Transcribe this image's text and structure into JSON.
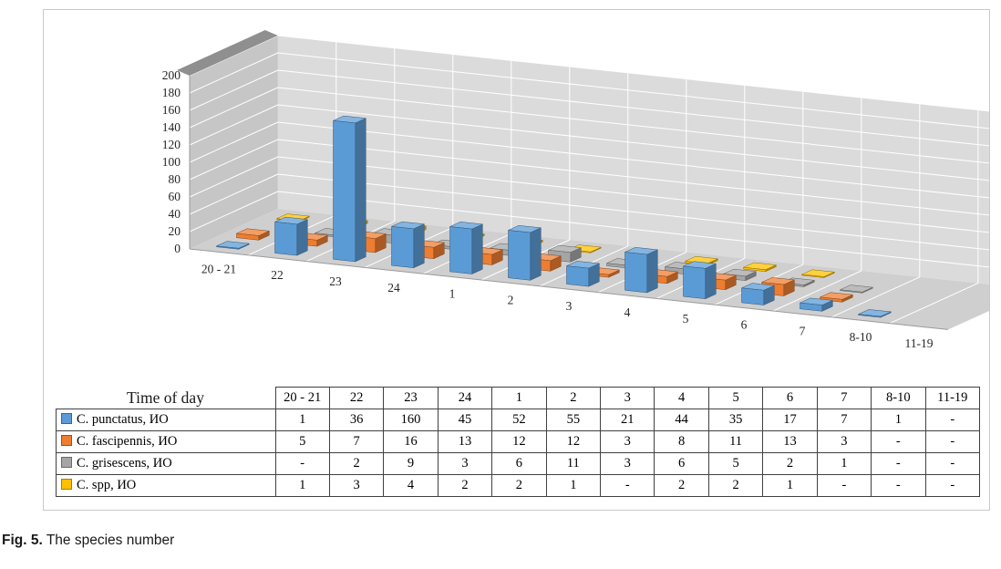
{
  "figure": {
    "border_color": "#c9c9c9"
  },
  "caption": {
    "label": "Fig. 5.",
    "text": " The species number"
  },
  "chart_data": {
    "type": "bar",
    "projection": "3d",
    "title": "",
    "xlabel": "",
    "ylabel": "",
    "categories": [
      "20 - 21",
      "22",
      "23",
      "24",
      "1",
      "2",
      "3",
      "4",
      "5",
      "6",
      "7",
      "8-10",
      "11-19"
    ],
    "series": [
      {
        "name": "C. punctatus, ИО",
        "color": "#5B9BD5",
        "values": [
          1,
          36,
          160,
          45,
          52,
          55,
          21,
          44,
          35,
          17,
          7,
          1,
          null
        ]
      },
      {
        "name": "C. fascipennis, ИО",
        "color": "#ED7D31",
        "values": [
          5,
          7,
          16,
          13,
          12,
          12,
          3,
          8,
          11,
          13,
          3,
          null,
          null
        ]
      },
      {
        "name": "C. grisescens, ИО",
        "color": "#A5A5A5",
        "values": [
          null,
          2,
          9,
          3,
          6,
          11,
          3,
          6,
          5,
          2,
          1,
          null,
          null
        ]
      },
      {
        "name": "C. spp, ИО",
        "color": "#FFC000",
        "values": [
          1,
          3,
          4,
          2,
          2,
          1,
          null,
          2,
          2,
          1,
          null,
          null,
          null
        ]
      }
    ],
    "ylim": [
      0,
      200
    ],
    "ytick_step": 20,
    "grid": true,
    "legend_position": "table-left",
    "table_header": "Time of day",
    "missing_marker": "-"
  }
}
